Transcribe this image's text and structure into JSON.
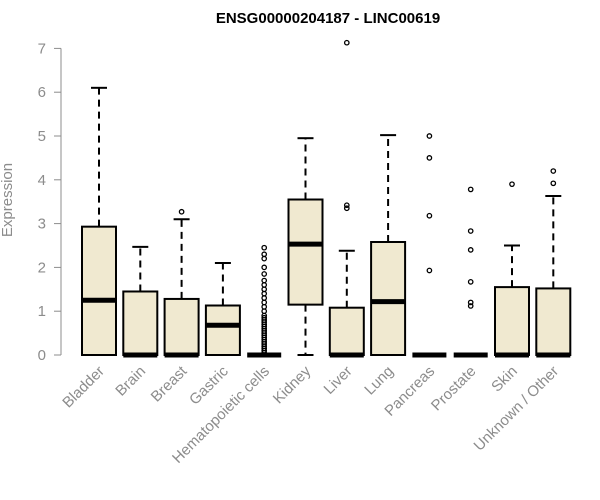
{
  "chart_data": {
    "type": "boxplot",
    "title": "ENSG00000204187 - LINC00619",
    "xlabel": "",
    "ylabel": "Expression",
    "ylim": [
      0,
      7
    ],
    "yticks": [
      0,
      1,
      2,
      3,
      4,
      5,
      6,
      7
    ],
    "categories": [
      "Bladder",
      "Brain",
      "Breast",
      "Gastric",
      "Hematopoietic cells",
      "Kidney",
      "Liver",
      "Lung",
      "Pancreas",
      "Prostate",
      "Skin",
      "Unknown / Other"
    ],
    "boxes": [
      {
        "category": "Bladder",
        "whisker_low": 0,
        "q1": 0,
        "median": 1.25,
        "q3": 2.93,
        "whisker_high": 6.1,
        "outliers": []
      },
      {
        "category": "Brain",
        "whisker_low": 0,
        "q1": 0,
        "median": 0,
        "q3": 1.45,
        "whisker_high": 2.47,
        "outliers": []
      },
      {
        "category": "Breast",
        "whisker_low": 0,
        "q1": 0,
        "median": 0,
        "q3": 1.28,
        "whisker_high": 3.1,
        "outliers": [
          3.27
        ]
      },
      {
        "category": "Gastric",
        "whisker_low": 0,
        "q1": 0,
        "median": 0.68,
        "q3": 1.13,
        "whisker_high": 2.1,
        "outliers": []
      },
      {
        "category": "Hematopoietic cells",
        "whisker_low": 0,
        "q1": 0,
        "median": 0,
        "q3": 0,
        "whisker_high": 0,
        "outliers": [
          0.05,
          0.1,
          0.15,
          0.2,
          0.25,
          0.3,
          0.35,
          0.4,
          0.45,
          0.5,
          0.55,
          0.6,
          0.65,
          0.7,
          0.75,
          0.8,
          0.85,
          0.9,
          1.0,
          1.1,
          1.2,
          1.3,
          1.4,
          1.5,
          1.6,
          1.7,
          1.85,
          2.0,
          2.2,
          2.3,
          2.45
        ]
      },
      {
        "category": "Kidney",
        "whisker_low": 0,
        "q1": 1.15,
        "median": 2.53,
        "q3": 3.55,
        "whisker_high": 4.95,
        "outliers": []
      },
      {
        "category": "Liver",
        "whisker_low": 0,
        "q1": 0,
        "median": 0,
        "q3": 1.08,
        "whisker_high": 2.38,
        "outliers": [
          3.35,
          3.42,
          7.13
        ]
      },
      {
        "category": "Lung",
        "whisker_low": 0,
        "q1": 0,
        "median": 1.22,
        "q3": 2.58,
        "whisker_high": 5.02,
        "outliers": []
      },
      {
        "category": "Pancreas",
        "whisker_low": 0,
        "q1": 0,
        "median": 0,
        "q3": 0,
        "whisker_high": 0,
        "outliers": [
          1.93,
          3.18,
          4.5,
          5.0
        ]
      },
      {
        "category": "Prostate",
        "whisker_low": 0,
        "q1": 0,
        "median": 0,
        "q3": 0,
        "whisker_high": 0,
        "outliers": [
          1.12,
          1.2,
          1.67,
          2.4,
          2.83,
          3.78
        ]
      },
      {
        "category": "Skin",
        "whisker_low": 0,
        "q1": 0,
        "median": 0,
        "q3": 1.55,
        "whisker_high": 2.5,
        "outliers": [
          3.9
        ]
      },
      {
        "category": "Unknown / Other",
        "whisker_low": 0,
        "q1": 0,
        "median": 0,
        "q3": 1.52,
        "whisker_high": 3.63,
        "outliers": [
          3.92,
          4.2
        ]
      }
    ],
    "grid": false,
    "colors": {
      "box_fill": "#f0e9d0",
      "box_stroke": "#000000",
      "axis": "#8c8c8c"
    }
  }
}
